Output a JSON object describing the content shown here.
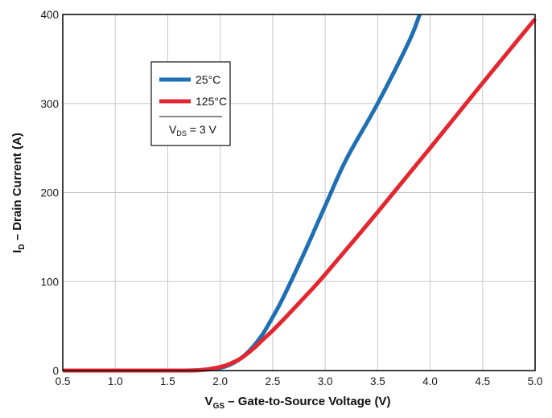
{
  "chart_data": {
    "type": "line",
    "xlabel": {
      "main": "V",
      "sub": "GS",
      "rest": " – Gate-to-Source Voltage (V)"
    },
    "ylabel": {
      "main": "I",
      "sub": "D",
      "rest": " – Drain Current (A)"
    },
    "xlim": [
      0.5,
      5.0
    ],
    "ylim": [
      0,
      400
    ],
    "x_ticks": [
      "0.5",
      "1.0",
      "1.5",
      "2.0",
      "2.5",
      "3.0",
      "3.5",
      "4.0",
      "4.5",
      "5.0"
    ],
    "y_ticks": [
      "0",
      "100",
      "200",
      "300",
      "400"
    ],
    "grid": true,
    "legend_position": "top-left",
    "legend_note": {
      "main": "V",
      "sub": "DS",
      "rest": " = 3 V"
    },
    "series": [
      {
        "name": "25°C",
        "color": "#1f6fb5",
        "x": [
          0.5,
          1.0,
          1.5,
          1.8,
          2.0,
          2.1,
          2.2,
          2.3,
          2.4,
          2.5,
          2.6,
          2.8,
          3.0,
          3.2,
          3.5,
          3.8,
          3.9
        ],
        "y": [
          0,
          0,
          0,
          0.5,
          3,
          7,
          14,
          25,
          40,
          60,
          82,
          132,
          185,
          237,
          300,
          370,
          400
        ]
      },
      {
        "name": "125°C",
        "color": "#e3262f",
        "x": [
          0.5,
          1.0,
          1.5,
          1.8,
          2.0,
          2.1,
          2.2,
          2.3,
          2.4,
          2.5,
          2.6,
          2.8,
          3.0,
          3.5,
          4.0,
          4.5,
          5.0
        ],
        "y": [
          0,
          0,
          0,
          0.5,
          4,
          8,
          14,
          23,
          34,
          45,
          57,
          82,
          108,
          178,
          250,
          323,
          395
        ]
      }
    ]
  }
}
